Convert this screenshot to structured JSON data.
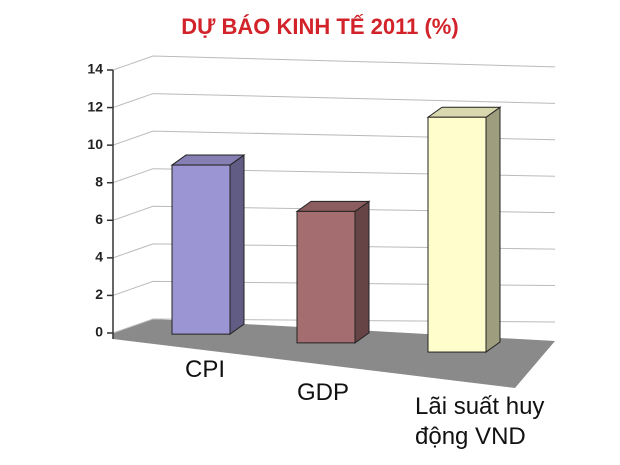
{
  "chart_data": {
    "type": "bar3d",
    "title": "DỰ BÁO KINH TẾ 2011 (%)",
    "categories": [
      "CPI",
      "GDP",
      "Lãi suất huy động VND"
    ],
    "values": [
      9,
      7,
      12.5
    ],
    "colors": [
      "#9c95d4",
      "#a46d6f",
      "#fffdcc"
    ],
    "ylim": [
      0,
      14
    ],
    "yticks": [
      0,
      2,
      4,
      6,
      8,
      10,
      12,
      14
    ],
    "grid": true
  }
}
